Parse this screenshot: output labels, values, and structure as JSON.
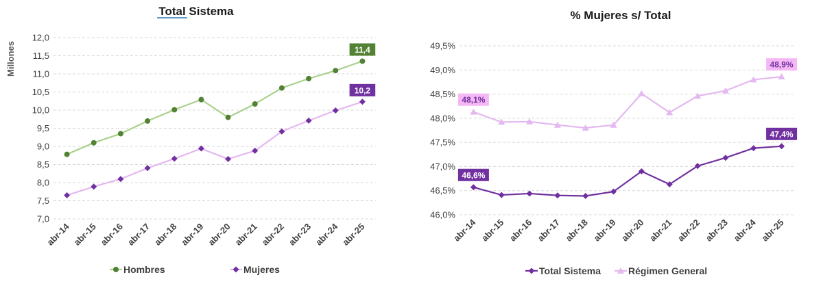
{
  "chart_data": [
    {
      "type": "line",
      "title": "Total Sistema",
      "ylabel": "Millones",
      "xlabel": "",
      "ylim": [
        7.0,
        12.0
      ],
      "yticks": [
        "7,0",
        "7,5",
        "8,0",
        "8,5",
        "9,0",
        "9,5",
        "10,0",
        "10,5",
        "11,0",
        "11,5",
        "12,0"
      ],
      "categories": [
        "abr-14",
        "abr-15",
        "abr-16",
        "abr-17",
        "abr-18",
        "abr-19",
        "abr-20",
        "abr-21",
        "abr-22",
        "abr-23",
        "abr-24",
        "abr-25"
      ],
      "series": [
        {
          "name": "Hombres",
          "values": [
            8.78,
            9.1,
            9.35,
            9.7,
            10.01,
            10.29,
            9.8,
            10.17,
            10.61,
            10.87,
            11.09,
            11.35
          ],
          "line_color": "#a9d18e",
          "marker_color": "#548235",
          "marker": "circle",
          "last_label": "11,4",
          "label_bg": "#548235"
        },
        {
          "name": "Mujeres",
          "values": [
            7.65,
            7.89,
            8.1,
            8.4,
            8.66,
            8.94,
            8.65,
            8.88,
            9.41,
            9.71,
            9.99,
            10.23
          ],
          "line_color": "#e4b8f0",
          "marker_color": "#7030a0",
          "marker": "diamond",
          "last_label": "10,2",
          "label_bg": "#7030a0"
        }
      ],
      "grid": true,
      "legend_position": "bottom"
    },
    {
      "type": "line",
      "title": "% Mujeres s/ Total",
      "ylabel": "",
      "xlabel": "",
      "ylim": [
        46.0,
        49.5
      ],
      "yticks": [
        "46,0%",
        "46,5%",
        "47,0%",
        "47,5%",
        "48,0%",
        "48,5%",
        "49,0%",
        "49,5%"
      ],
      "categories": [
        "abr-14",
        "abr-15",
        "abr-16",
        "abr-17",
        "abr-18",
        "abr-19",
        "abr-20",
        "abr-21",
        "abr-22",
        "abr-23",
        "abr-24",
        "abr-25"
      ],
      "series": [
        {
          "name": "Total Sistema",
          "values": [
            46.57,
            46.41,
            46.44,
            46.4,
            46.39,
            46.48,
            46.9,
            46.63,
            47.01,
            47.18,
            47.38,
            47.42
          ],
          "line_color": "#7030a0",
          "marker_color": "#7030a0",
          "marker": "diamond",
          "first_label": "46,6%",
          "last_label": "47,4%",
          "label_bg": "#7030a0",
          "label_color": "#ffffff"
        },
        {
          "name": "Régimen General",
          "values": [
            48.13,
            47.92,
            47.93,
            47.86,
            47.8,
            47.86,
            48.51,
            48.12,
            48.46,
            48.57,
            48.8,
            48.86
          ],
          "line_color": "#e4b8f0",
          "marker_color": "#e4b8f0",
          "marker": "triangle",
          "first_label": "48,1%",
          "last_label": "48,9%",
          "label_bg": "#f5b8f5",
          "label_color": "#7030a0"
        }
      ],
      "grid": true,
      "legend_position": "bottom"
    }
  ]
}
